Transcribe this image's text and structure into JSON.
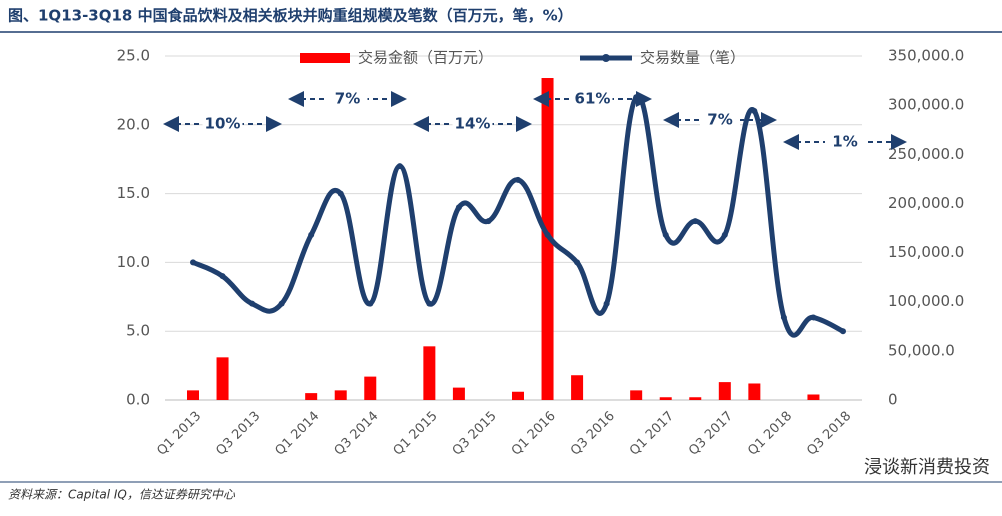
{
  "chart_data": {
    "type": "bar-line",
    "title": "图、1Q13-3Q18 中国食品饮料及相关板块并购重组规模及笔数（百万元，笔，%）",
    "source": "资料来源：Capital IQ，信达证券研究中心",
    "watermark": "浸谈新消费投资",
    "categories": [
      "Q1 2013",
      null,
      "Q3 2013",
      null,
      "Q1 2014",
      null,
      "Q3 2014",
      null,
      "Q1 2015",
      null,
      "Q3 2015",
      null,
      "Q1 2016",
      null,
      "Q3 2016",
      null,
      "Q1 2017",
      null,
      "Q3 2017",
      null,
      "Q1 2018",
      null,
      "Q3 2018"
    ],
    "series": [
      {
        "name": "交易金额（百万元）",
        "type": "bar",
        "color": "#ff0000",
        "axis": "y",
        "values": [
          0.7,
          3.1,
          0,
          0,
          0.5,
          0.7,
          1.7,
          0,
          3.9,
          0.9,
          0,
          0.6,
          23.4,
          1.8,
          0,
          0.7,
          0.2,
          0.2,
          1.3,
          1.2,
          0,
          0.4,
          0
        ]
      },
      {
        "name": "交易数量（笔）",
        "type": "line",
        "color": "#1f3f6e",
        "axis": "y2",
        "values": [
          140000,
          126000,
          98000,
          98000,
          168000,
          210000,
          98000,
          238000,
          98000,
          196000,
          182000,
          224000,
          168000,
          140000,
          98000,
          308000,
          168000,
          182000,
          168000,
          294000,
          84000,
          84000,
          70000
        ]
      }
    ],
    "ylim": [
      0,
      25
    ],
    "yticks": [
      {
        "value": 0,
        "label": "0.0"
      },
      {
        "value": 5,
        "label": "5.0"
      },
      {
        "value": 10,
        "label": "10.0"
      },
      {
        "value": 15,
        "label": "15.0"
      },
      {
        "value": 20,
        "label": "20.0"
      },
      {
        "value": 25,
        "label": "25.0"
      }
    ],
    "y2lim": [
      0,
      350000
    ],
    "y2ticks": [
      0,
      {
        "value": 50000,
        "label": "50,000.0"
      },
      {
        "value": 100000,
        "label": "100,000.0"
      },
      {
        "value": 150000,
        "label": "150,000.0"
      },
      {
        "value": 200000,
        "label": "200,000.0"
      },
      {
        "value": 250000,
        "label": "250,000.0"
      },
      {
        "value": 300000,
        "label": "300,000.0"
      },
      {
        "value": 350000,
        "label": "350,000.0"
      }
    ],
    "grid": true,
    "legend": "top",
    "annotations": [
      "10%",
      "7%",
      "14%",
      "61%",
      "7%",
      "1%"
    ]
  }
}
